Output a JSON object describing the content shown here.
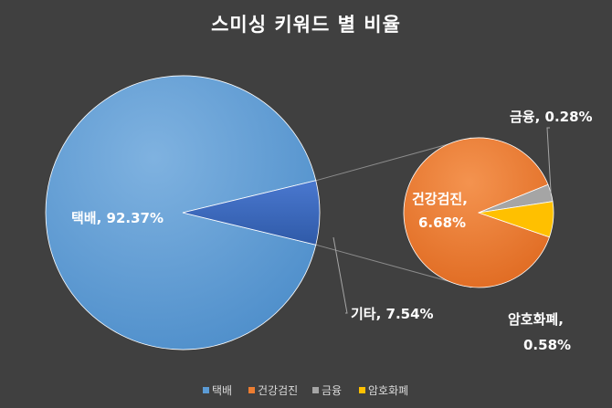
{
  "chart_data": {
    "type": "pie",
    "subtype": "bar-of-pie",
    "title": "스미싱 키워드 별 비율",
    "main_pie": {
      "slices": [
        {
          "name": "택배",
          "value": 92.37,
          "label": "택배, 92.37%",
          "color": "#5B9BD5"
        },
        {
          "name": "기타",
          "value": 7.54,
          "label": "기타, 7.54%",
          "color": "#4472C4"
        }
      ]
    },
    "secondary_pie": {
      "slices": [
        {
          "name": "건강검진",
          "value": 6.68,
          "label_lines": [
            "건강검진,",
            "6.68%"
          ],
          "color": "#ED7D31"
        },
        {
          "name": "금융",
          "value": 0.28,
          "label": "금융, 0.28%",
          "color": "#A5A5A5"
        },
        {
          "name": "암호화폐",
          "value": 0.58,
          "label_lines": [
            "암호화폐,",
            "0.58%"
          ],
          "color": "#FFC000"
        }
      ]
    },
    "legend": {
      "position": "bottom",
      "entries": [
        {
          "name": "택배",
          "color": "#5B9BD5"
        },
        {
          "name": "건강검진",
          "color": "#ED7D31"
        },
        {
          "name": "금융",
          "color": "#A5A5A5"
        },
        {
          "name": "암호화폐",
          "color": "#FFC000"
        }
      ]
    }
  }
}
